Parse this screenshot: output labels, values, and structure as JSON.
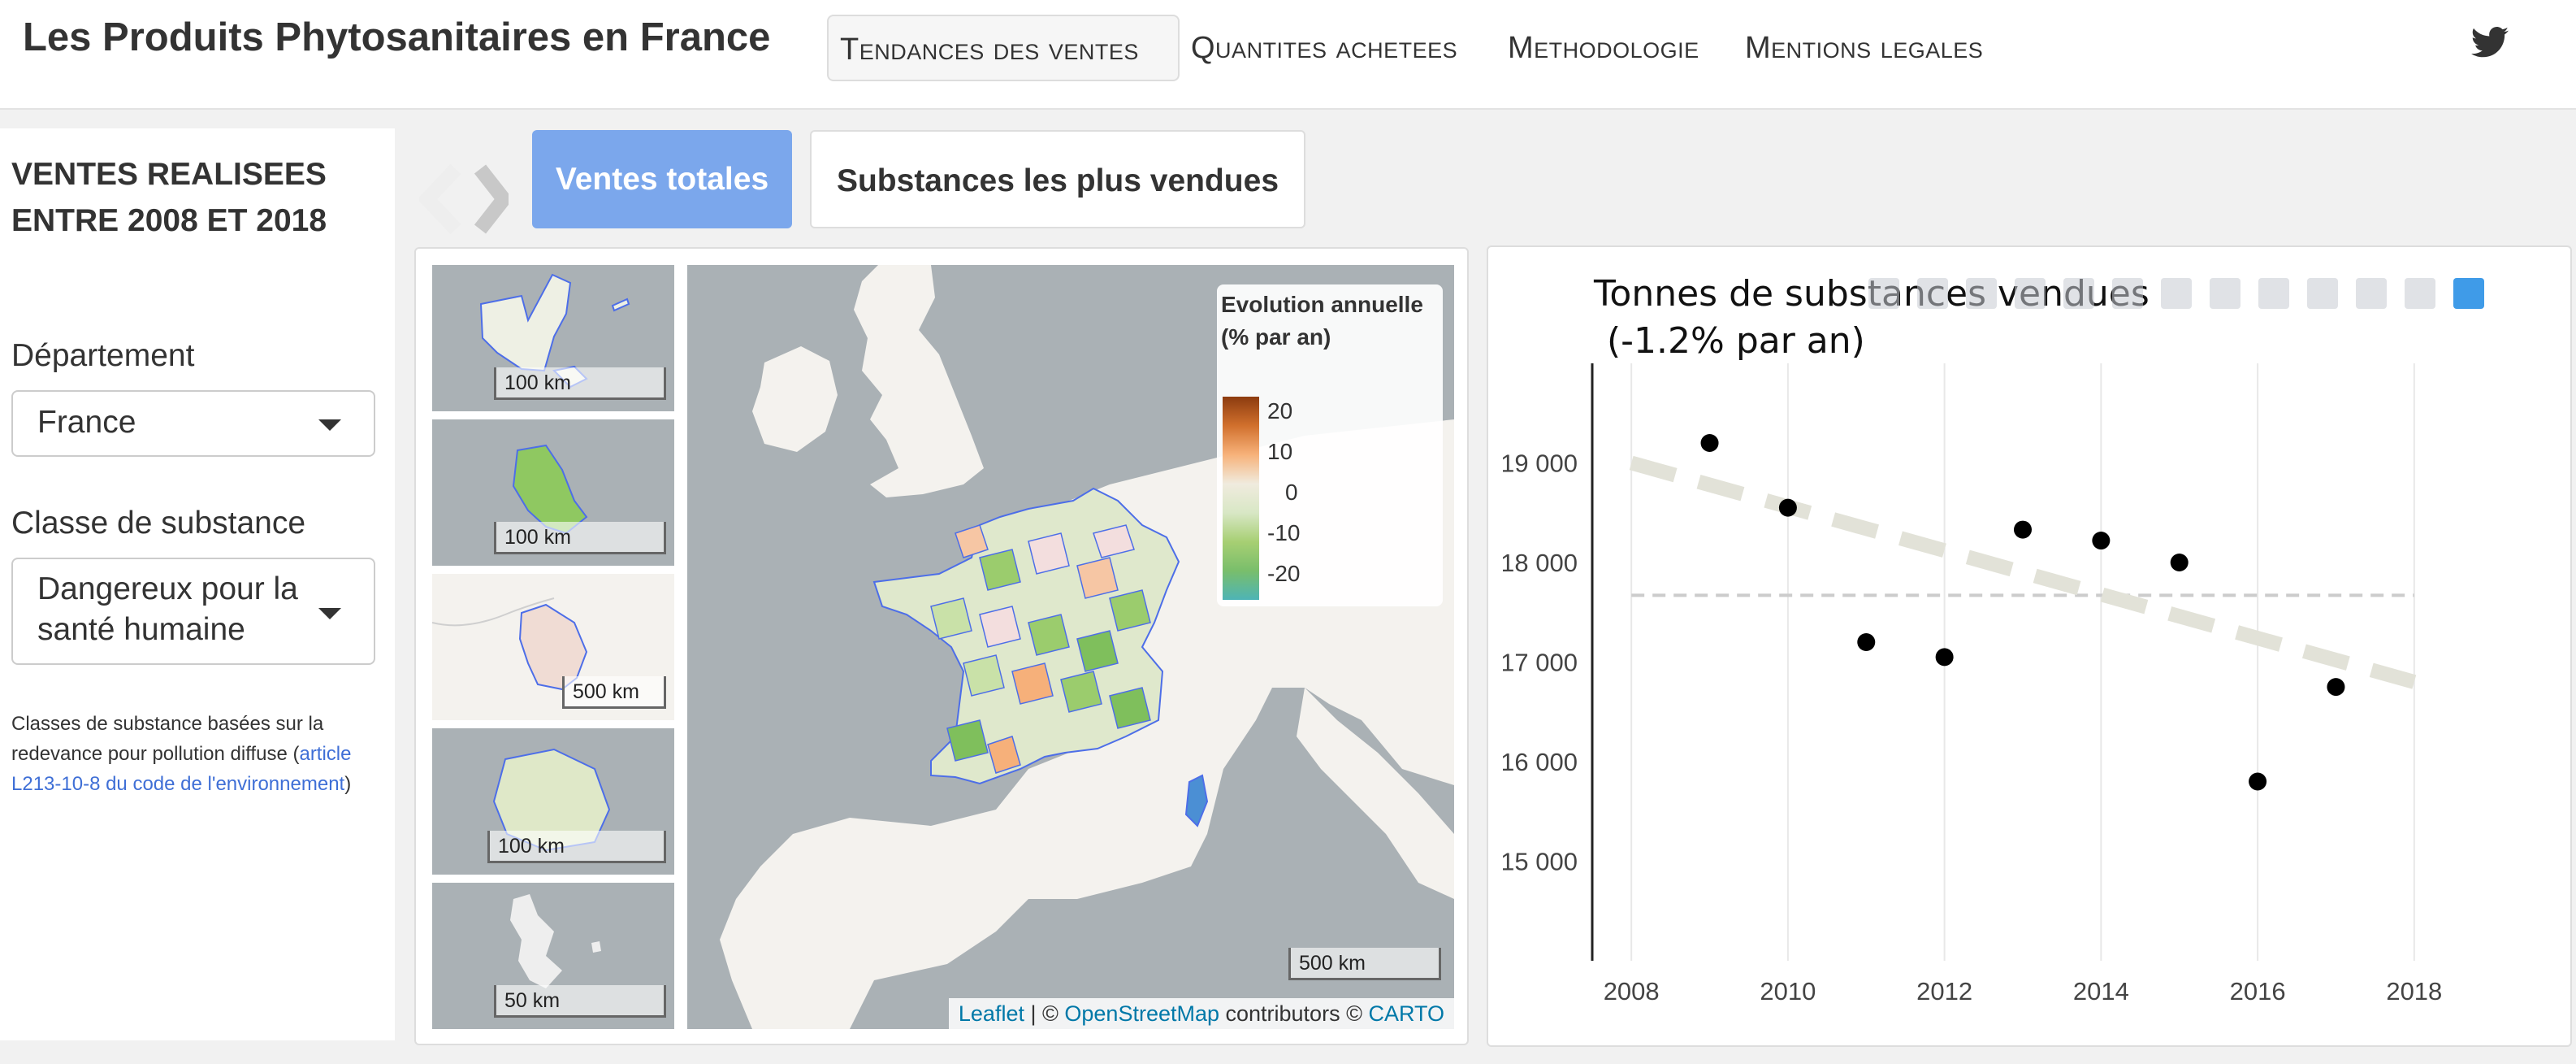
{
  "navbar": {
    "brand": "Les Produits Phytosanitaires en France",
    "links": [
      "Tendances des ventes",
      "Quantites achetees",
      "Methodologie",
      "Mentions legales"
    ],
    "twitter_icon": "twitter-icon"
  },
  "sidebar": {
    "title": "VENTES REALISEES ENTRE 2008 ET 2018",
    "departement": {
      "label": "Département",
      "value": "France"
    },
    "classe": {
      "label": "Classe de substance",
      "value": "Dangereux pour la santé humaine"
    },
    "note": {
      "prefix": "Classes de substance basées sur la redevance pour pollution diffuse (",
      "link": "article L213-10-8 du code de l'environnement",
      "suffix": ")"
    }
  },
  "tabs": [
    "Ventes totales",
    "Substances les plus vendues"
  ],
  "map": {
    "insets": [
      {
        "scale": "100 km"
      },
      {
        "scale": "100 km"
      },
      {
        "scale": "500 km"
      },
      {
        "scale": "100 km"
      },
      {
        "scale": "50 km"
      }
    ],
    "scale": "500 km",
    "legend": {
      "title": "Evolution annuelle (% par an)",
      "ticks": [
        "20",
        "10",
        "0",
        "-10",
        "-20"
      ]
    },
    "attribution": {
      "leaflet": "Leaflet",
      "sep1": " | © ",
      "osm": "OpenStreetMap",
      "sep2": " contributors © ",
      "carto": "CARTO"
    },
    "colors": {
      "sea": "#aab1b5",
      "land": "#f4f2ee",
      "border": "#4d6ee8"
    }
  },
  "chart_data": {
    "type": "scatter",
    "title": "Tonnes de substances vendues",
    "subtitle": "(-1.2% par an)",
    "xlabel": "",
    "ylabel": "",
    "x_ticks": [
      "2008",
      "2010",
      "2012",
      "2014",
      "2016",
      "2018"
    ],
    "y_ticks": [
      "15 000",
      "16 000",
      "17 000",
      "18 000",
      "19 000"
    ],
    "xlim": [
      2007.5,
      2018.5
    ],
    "ylim": [
      14000,
      20000
    ],
    "points": [
      {
        "x": 2009,
        "y": 19200
      },
      {
        "x": 2010,
        "y": 18550
      },
      {
        "x": 2011,
        "y": 17200
      },
      {
        "x": 2012,
        "y": 17050
      },
      {
        "x": 2013,
        "y": 18330
      },
      {
        "x": 2014,
        "y": 18220
      },
      {
        "x": 2015,
        "y": 18000
      },
      {
        "x": 2016,
        "y": 15800
      },
      {
        "x": 2017,
        "y": 16750
      }
    ],
    "mean": 17670,
    "trend": {
      "x": [
        2008,
        2018
      ],
      "y": [
        19000,
        16800
      ]
    },
    "grid": true,
    "modebar_icons": [
      "camera-icon",
      "zoom-icon",
      "pan-icon",
      "select-icon",
      "lasso-icon",
      "zoom-in-icon",
      "zoom-out-icon",
      "autoscale-icon",
      "home-icon",
      "spike-icon",
      "hover-closest-icon",
      "hover-compare-icon",
      "plotly-logo-icon"
    ],
    "colors": {
      "point": "#000000",
      "trend": "#e2e2d8",
      "mean": "#cccccc",
      "grid": "#e8e8e8"
    }
  }
}
